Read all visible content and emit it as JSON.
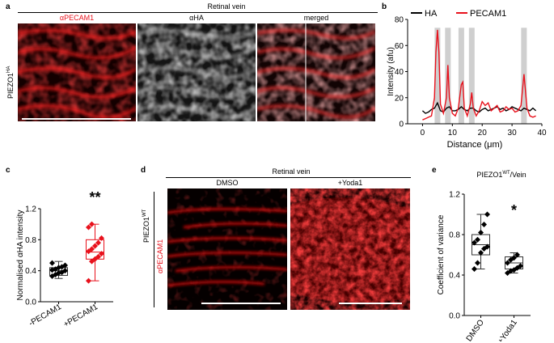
{
  "figure": {
    "panel_a": {
      "letter": "a",
      "header": "Retinal vein",
      "side_label": "PIEZO1",
      "side_label_sup": "HA",
      "subpanels": [
        "αPECAM1",
        "αHA",
        "merged"
      ]
    },
    "panel_b": {
      "letter": "b",
      "legend": [
        "HA",
        "PECAM1"
      ],
      "xlabel": "Distance (μm)",
      "ylabel": "Intensity (afu)"
    },
    "panel_c": {
      "letter": "c",
      "ylabel": "Normalised αHA intensity",
      "categories": [
        "-PECAM1",
        "+PECAM1"
      ],
      "significance": "**"
    },
    "panel_d": {
      "letter": "d",
      "header": "Retinal vein",
      "columns": [
        "DMSO",
        "+Yoda1"
      ],
      "side_label": "PIEZO1",
      "side_label_sup": "WT",
      "stain_label": "αPECAM1"
    },
    "panel_e": {
      "letter": "e",
      "title": "PIEZO1",
      "title_sup": "WT",
      "title_suffix": "/Vein",
      "ylabel": "Coefficient of variance",
      "categories": [
        "DMSO",
        "+Yoda1"
      ],
      "significance": "*"
    }
  },
  "chart_data": [
    {
      "type": "line",
      "panel": "b",
      "xlim": [
        -5,
        40
      ],
      "ylim": [
        0,
        80
      ],
      "xticks": [
        0,
        10,
        20,
        30,
        40
      ],
      "yticks": [
        0,
        20,
        40,
        60,
        80
      ],
      "highlight_x": [
        5,
        8.5,
        13,
        16.5,
        34
      ],
      "series": [
        {
          "name": "HA",
          "color": "#000000",
          "x": [
            0,
            1,
            2,
            3,
            4,
            5,
            6,
            7,
            8,
            9,
            10,
            11,
            12,
            13,
            14,
            15,
            16,
            17,
            18,
            19,
            20,
            21,
            22,
            23,
            24,
            25,
            26,
            27,
            28,
            29,
            30,
            31,
            32,
            33,
            34,
            35,
            36,
            37,
            38
          ],
          "y": [
            10,
            8,
            9,
            11,
            12,
            16,
            10,
            9,
            12,
            13,
            10,
            10,
            11,
            13,
            11,
            10,
            12,
            12,
            10,
            9,
            11,
            12,
            10,
            11,
            12,
            13,
            11,
            12,
            10,
            11,
            13,
            12,
            11,
            10,
            12,
            11,
            10,
            12,
            10
          ]
        },
        {
          "name": "PECAM1",
          "color": "#e8111c",
          "x": [
            0,
            1,
            2,
            3,
            4,
            4.5,
            5,
            5.5,
            6,
            7,
            8,
            8.5,
            9,
            10,
            11,
            12,
            13,
            13.5,
            14,
            15,
            16,
            16.5,
            17,
            18,
            19,
            20,
            21,
            22,
            23,
            24,
            25,
            26,
            27,
            28,
            29,
            30,
            31,
            32,
            33,
            34,
            35,
            36,
            37,
            38
          ],
          "y": [
            3,
            4,
            5,
            6,
            20,
            55,
            72,
            55,
            15,
            8,
            20,
            45,
            20,
            8,
            6,
            12,
            30,
            32,
            12,
            6,
            15,
            24,
            12,
            6,
            10,
            17,
            14,
            16,
            10,
            12,
            14,
            9,
            10,
            13,
            11,
            12,
            9,
            10,
            14,
            38,
            12,
            6,
            5,
            6
          ]
        }
      ]
    },
    {
      "type": "scatter",
      "panel": "c",
      "ylim": [
        0,
        1.2
      ],
      "yticks": [
        0.0,
        0.4,
        0.8,
        1.2
      ],
      "categories": [
        "-PECAM1",
        "+PECAM1"
      ],
      "series": [
        {
          "name": "-PECAM1",
          "color": "#000000",
          "values": [
            0.33,
            0.35,
            0.37,
            0.38,
            0.4,
            0.41,
            0.42,
            0.44,
            0.45,
            0.47,
            0.5
          ],
          "box": {
            "min": 0.3,
            "q1": 0.34,
            "median": 0.4,
            "q3": 0.44,
            "max": 0.52
          }
        },
        {
          "name": "+PECAM1",
          "color": "#e8111c",
          "values": [
            0.27,
            0.52,
            0.55,
            0.58,
            0.62,
            0.65,
            0.68,
            0.72,
            0.76,
            0.82,
            0.96,
            1.0
          ],
          "box": {
            "min": 0.27,
            "q1": 0.55,
            "median": 0.64,
            "q3": 0.8,
            "max": 1.0
          }
        }
      ]
    },
    {
      "type": "scatter",
      "panel": "e",
      "ylim": [
        0,
        1.2
      ],
      "yticks": [
        0.0,
        0.4,
        0.8,
        1.2
      ],
      "categories": [
        "DMSO",
        "+Yoda1"
      ],
      "series": [
        {
          "name": "DMSO",
          "color": "#000000",
          "values": [
            0.46,
            0.52,
            0.62,
            0.66,
            0.68,
            0.72,
            0.75,
            0.82,
            0.9,
            1.0
          ],
          "box": {
            "min": 0.46,
            "q1": 0.6,
            "median": 0.7,
            "q3": 0.8,
            "max": 1.0
          }
        },
        {
          "name": "+Yoda1",
          "color": "#000000",
          "values": [
            0.42,
            0.44,
            0.45,
            0.47,
            0.49,
            0.52,
            0.55,
            0.57,
            0.6
          ],
          "box": {
            "min": 0.42,
            "q1": 0.46,
            "median": 0.52,
            "q3": 0.58,
            "max": 0.62
          }
        }
      ]
    }
  ]
}
